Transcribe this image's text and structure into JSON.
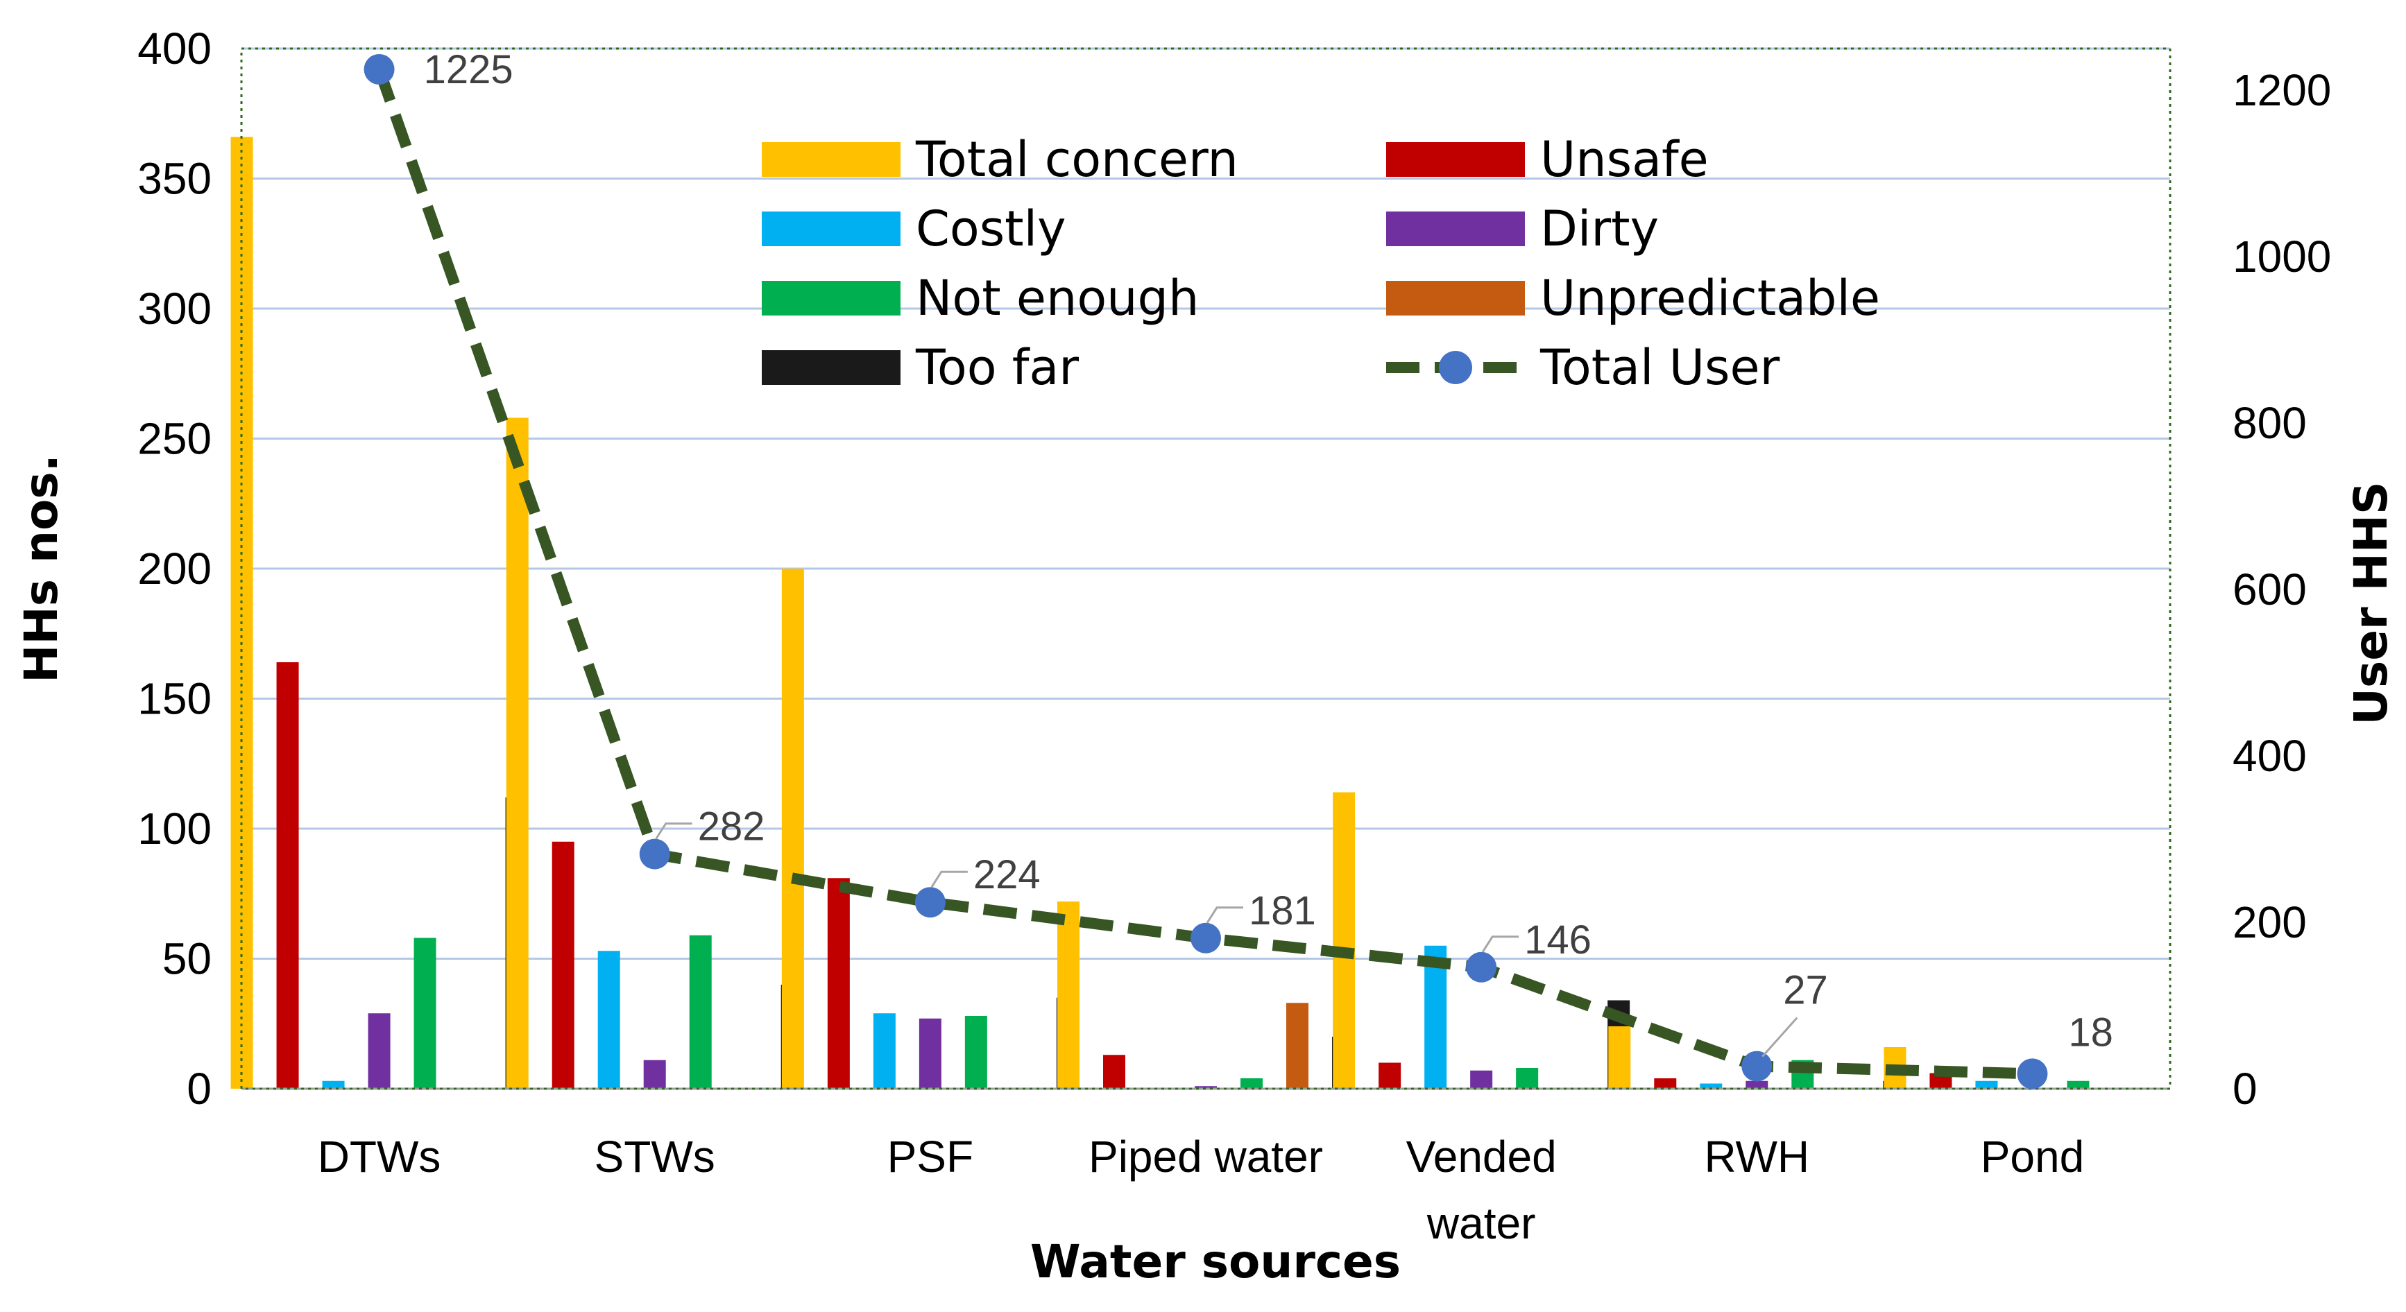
{
  "chart_data": {
    "type": "bar",
    "title": "",
    "xlabel": "Water sources",
    "ylabel": "HHs nos.",
    "y2label": "User HHS",
    "ylim": [
      0,
      400
    ],
    "y2lim": [
      0,
      1250
    ],
    "yticks": [
      "0",
      "50",
      "100",
      "150",
      "200",
      "250",
      "300",
      "350",
      "400"
    ],
    "y2ticks": [
      "0",
      "200",
      "400",
      "600",
      "800",
      "1000",
      "1200"
    ],
    "categories": [
      "DTWs",
      "STWs",
      "PSF",
      "Piped water",
      "Vended water",
      "RWH",
      "Pond"
    ],
    "series": [
      {
        "name": "Total concern",
        "color": "#FFC000",
        "values": [
          366,
          258,
          200,
          72,
          114,
          24,
          16
        ]
      },
      {
        "name": "Unsafe",
        "color": "#C00000",
        "values": [
          164,
          95,
          81,
          13,
          10,
          4,
          6
        ]
      },
      {
        "name": "Costly",
        "color": "#00B0F0",
        "values": [
          3,
          53,
          29,
          0,
          55,
          2,
          3
        ]
      },
      {
        "name": "Dirty",
        "color": "#7030A0",
        "values": [
          29,
          11,
          27,
          1,
          7,
          3,
          0
        ]
      },
      {
        "name": "Not enough",
        "color": "#00B050",
        "values": [
          58,
          59,
          28,
          4,
          8,
          11,
          3
        ]
      },
      {
        "name": "Unpredictable",
        "color": "#C55A11",
        "values": [
          0,
          0,
          0,
          33,
          0,
          0,
          0
        ]
      },
      {
        "name": "Too far",
        "color": "#1A1A1A",
        "values": [
          112,
          40,
          35,
          20,
          34,
          3,
          0
        ]
      }
    ],
    "line_series": {
      "name": "Total User",
      "axis": "secondary",
      "line_color": "#375623",
      "marker_color": "#4472C4",
      "values": [
        1225,
        282,
        224,
        181,
        146,
        27,
        18
      ],
      "labels": [
        "1225",
        "282",
        "224",
        "181",
        "146",
        "27",
        "18"
      ]
    },
    "legend": {
      "placement": "top-center",
      "entries": [
        "Total concern",
        "Unsafe",
        "Costly",
        "Dirty",
        "Not enough",
        "Unpredictable",
        "Too far",
        "Total User"
      ]
    },
    "grid": true
  }
}
